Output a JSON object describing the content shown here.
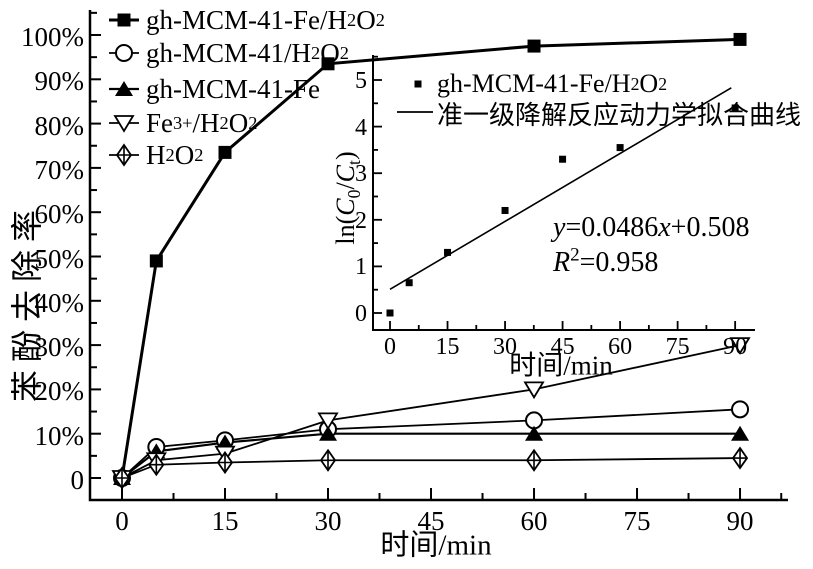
{
  "figure": {
    "background_color": "#ffffff",
    "ink_color": "#000000"
  },
  "chart_data": [
    {
      "id": "main",
      "type": "line",
      "title": "",
      "xlabel": "时间/min",
      "ylabel": "苯酚去除率",
      "x_ticks": [
        0,
        15,
        30,
        45,
        60,
        75,
        90
      ],
      "x_minor_ticks": [
        7.5,
        22.5,
        37.5,
        52.5,
        67.5,
        82.5,
        96
      ],
      "y_tick_labels": [
        "0",
        "10%",
        "20%",
        "30%",
        "40%",
        "50%",
        "60%",
        "70%",
        "80%",
        "90%",
        "100%"
      ],
      "y_ticks_pct": [
        0,
        10,
        20,
        30,
        40,
        50,
        60,
        70,
        80,
        90,
        100
      ],
      "y_minor_ticks_pct": [
        5,
        15,
        25,
        35,
        45,
        55,
        65,
        75,
        85,
        95,
        105
      ],
      "xlim": [
        -4.7,
        97
      ],
      "ylim_pct": [
        -5,
        105.6
      ],
      "grid": false,
      "legend_position": "top-left",
      "x": [
        0,
        5,
        15,
        30,
        60,
        90
      ],
      "series": [
        {
          "name": "gh-MCM-41-Fe/H2O2",
          "label_html": "gh-MCM-41-Fe/H<sub>2</sub>O<sub>2</sub>",
          "marker": "filled-square",
          "values_pct": [
            0,
            49,
            73.5,
            93.5,
            97.5,
            99
          ]
        },
        {
          "name": "gh-MCM-41/H2O2",
          "label_html": "gh-MCM-41/H<sub>2</sub>O<sub>2</sub>",
          "marker": "open-circle",
          "values_pct": [
            0,
            7,
            8.5,
            11,
            13,
            15.5
          ]
        },
        {
          "name": "gh-MCM-41-Fe",
          "label_html": "gh-MCM-41-Fe",
          "marker": "filled-triangle",
          "values_pct": [
            0,
            6,
            8,
            10,
            10,
            10
          ]
        },
        {
          "name": "Fe3+/H2O2",
          "label_html": "Fe<sup>3+</sup>/H<sub>2</sub>O<sub>2</sub>",
          "marker": "open-down-triangle",
          "values_pct": [
            0,
            4,
            5.5,
            13,
            20,
            30
          ]
        },
        {
          "name": "H2O2",
          "label_html": "H<sub>2</sub>O<sub>2</sub>",
          "marker": "diamond-cross",
          "values_pct": [
            0,
            3,
            3.5,
            4,
            4,
            4.5
          ]
        }
      ]
    },
    {
      "id": "inset",
      "type": "scatter",
      "title": "",
      "xlabel": "时间/min",
      "ylabel": "ln(C0/Ct)",
      "ylabel_html": "ln(<i>C</i><sub>0</sub>/<i>C</i><sub>t</sub>)",
      "x_ticks": [
        0,
        15,
        30,
        45,
        60,
        75,
        90
      ],
      "x_minor_ticks": [
        7.5,
        22.5,
        37.5,
        52.5,
        67.5,
        82.5
      ],
      "y_ticks": [
        0,
        1,
        2,
        3,
        4,
        5
      ],
      "y_minor_ticks": [
        0.5,
        1.5,
        2.5,
        3.5,
        4.5,
        5.5
      ],
      "xlim": [
        -4.4,
        95
      ],
      "ylim": [
        -0.37,
        5.54
      ],
      "grid": false,
      "legend_position": "top-left",
      "points": {
        "x": [
          0,
          5,
          15,
          30,
          45,
          60,
          90
        ],
        "y": [
          0,
          0.65,
          1.3,
          2.2,
          3.3,
          3.55,
          4.4
        ]
      },
      "points_label": "gh-MCM-41-Fe/H2O2",
      "points_label_html": "gh-MCM-41-Fe/H<sub>2</sub>O<sub>2</sub>",
      "fit_label": "准一级降解反应动力学拟合曲线",
      "fit": {
        "slope": 0.0486,
        "intercept": 0.508,
        "line_x": [
          0,
          89
        ],
        "equation": "y=0.0486x+0.508",
        "equation_html": "<i>y</i>=0.0486<i>x</i>+0.508",
        "r_squared": "R2=0.958",
        "r2_html": "<i>R</i><sup>2</sup>=0.958"
      }
    }
  ]
}
